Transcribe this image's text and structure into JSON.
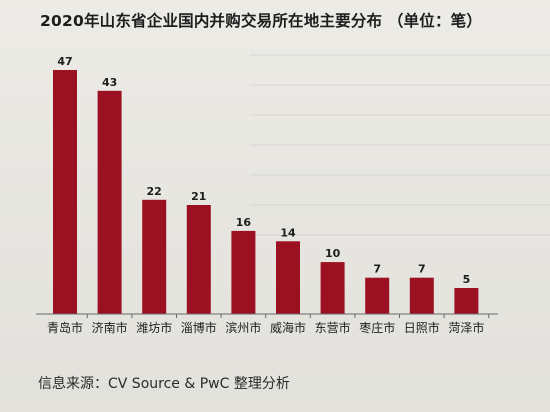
{
  "title": "2020年山东省企业国内并购交易所在地主要分布 （单位：笔）",
  "source": "信息来源：CV Source & PwC 整理分析",
  "colors": {
    "bar": "#9b1122",
    "text": "#1e1e1e"
  },
  "chart_data": {
    "type": "bar",
    "title": "2020年山东省企业国内并购交易所在地主要分布 （单位：笔）",
    "categories": [
      "青岛市",
      "济南市",
      "潍坊市",
      "淄博市",
      "滨州市",
      "威海市",
      "东营市",
      "枣庄市",
      "日照市",
      "菏泽市"
    ],
    "values": [
      47,
      43,
      22,
      21,
      16,
      14,
      10,
      7,
      7,
      5
    ],
    "xlabel": "",
    "ylabel": "",
    "ylim": [
      0,
      47
    ],
    "grid": false,
    "legend": "none"
  }
}
